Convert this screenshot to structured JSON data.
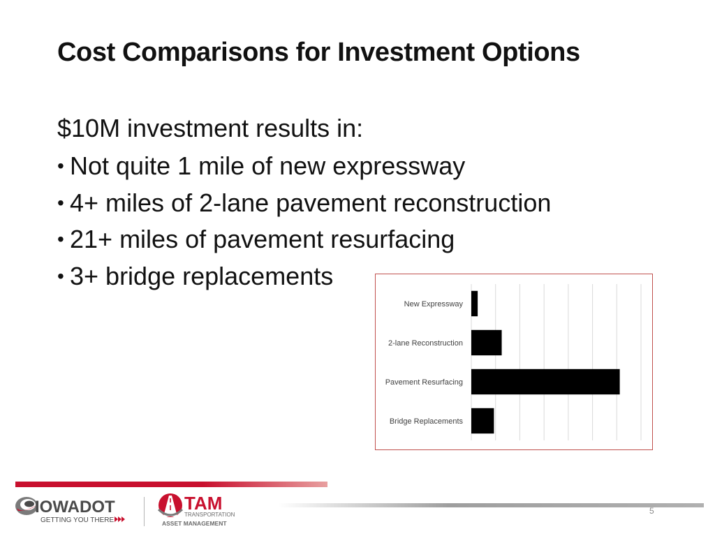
{
  "slide": {
    "title": "Cost Comparisons for Investment Options",
    "intro": "$10M investment results in:",
    "bullets": [
      "Not quite 1 mile of new expressway",
      "4+ miles of 2-lane pavement reconstruction",
      "21+ miles of pavement resurfacing",
      "3+ bridge replacements"
    ],
    "page_number": "5"
  },
  "logos": {
    "iowadot_name": "IOWADOT",
    "iowadot_tagline": "GETTING YOU THERE",
    "tam_name": "TAM",
    "tam_line1": "TRANSPORTATION",
    "tam_line2": "ASSET MANAGEMENT"
  },
  "colors": {
    "chart_border": "#c0504d",
    "bar_fill": "#000000",
    "footer_red": "#c8102e",
    "footer_gray": "#9e9e9e"
  },
  "chart_data": {
    "type": "bar",
    "orientation": "horizontal",
    "categories": [
      "New Expressway",
      "2-lane Reconstruction",
      "Pavement Resurfacing",
      "Bridge Replacements"
    ],
    "values": [
      0.9,
      4.3,
      21,
      3.2
    ],
    "xlim": [
      0,
      24
    ],
    "grid": true,
    "legend": "none"
  }
}
